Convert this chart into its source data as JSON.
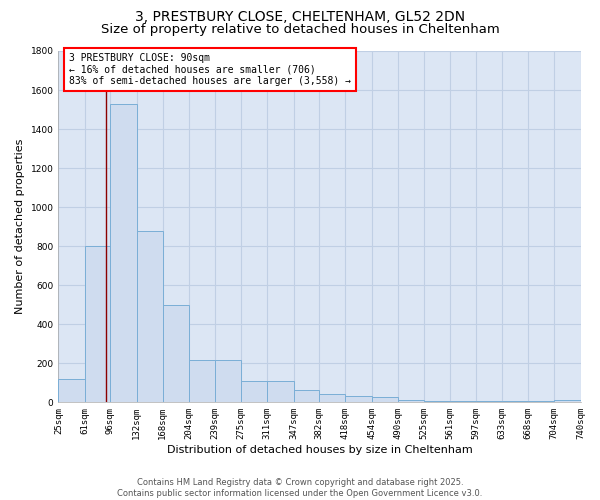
{
  "title_line1": "3, PRESTBURY CLOSE, CHELTENHAM, GL52 2DN",
  "title_line2": "Size of property relative to detached houses in Cheltenham",
  "xlabel": "Distribution of detached houses by size in Cheltenham",
  "ylabel": "Number of detached properties",
  "bar_values": [
    120,
    800,
    1530,
    880,
    500,
    215,
    215,
    110,
    110,
    65,
    45,
    30,
    25,
    10,
    5,
    5,
    5,
    5,
    5,
    10
  ],
  "bin_edges": [
    25,
    61,
    96,
    132,
    168,
    204,
    239,
    275,
    311,
    347,
    382,
    418,
    454,
    490,
    525,
    561,
    597,
    633,
    668,
    704,
    740
  ],
  "bar_color": "#cfdcef",
  "bar_edge_color": "#7aaed6",
  "background_color": "#dce6f4",
  "grid_color": "#c0cfe4",
  "red_line_x": 90,
  "annotation_line1": "3 PRESTBURY CLOSE: 90sqm",
  "annotation_line2": "← 16% of detached houses are smaller (706)",
  "annotation_line3": "83% of semi-detached houses are larger (3,558) →",
  "ylim": [
    0,
    1800
  ],
  "yticks": [
    0,
    200,
    400,
    600,
    800,
    1000,
    1200,
    1400,
    1600,
    1800
  ],
  "footer_line1": "Contains HM Land Registry data © Crown copyright and database right 2025.",
  "footer_line2": "Contains public sector information licensed under the Open Government Licence v3.0.",
  "title_fontsize": 10,
  "subtitle_fontsize": 9.5,
  "axis_label_fontsize": 8,
  "tick_fontsize": 6.5,
  "annotation_fontsize": 7,
  "footer_fontsize": 6
}
